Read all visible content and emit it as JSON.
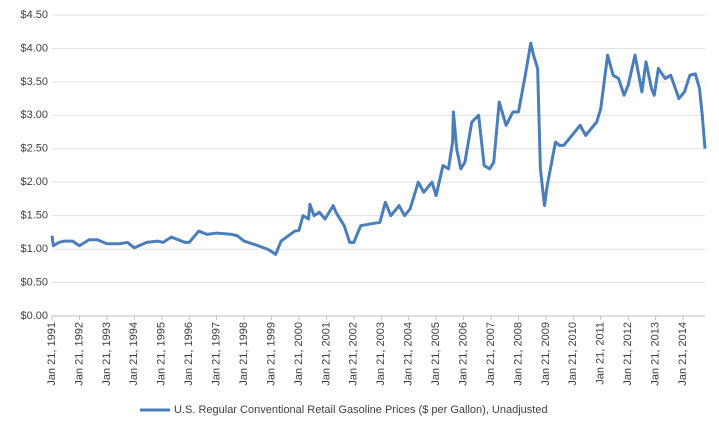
{
  "chart_data": {
    "type": "line",
    "x": [
      1991.05,
      1991.1,
      1991.3,
      1991.5,
      1991.8,
      1992.05,
      1992.4,
      1992.7,
      1993.05,
      1993.5,
      1993.8,
      1994.05,
      1994.5,
      1994.9,
      1995.1,
      1995.4,
      1995.9,
      1996.05,
      1996.4,
      1996.7,
      1997.05,
      1997.6,
      1997.8,
      1998.05,
      1998.5,
      1998.9,
      1999.1,
      1999.2,
      1999.4,
      1999.9,
      2000.05,
      2000.2,
      2000.4,
      2000.45,
      2000.6,
      2000.8,
      2001.0,
      2001.3,
      2001.4,
      2001.7,
      2001.9,
      2002.05,
      2002.3,
      2002.7,
      2003.0,
      2003.2,
      2003.4,
      2003.7,
      2003.9,
      2004.1,
      2004.4,
      2004.6,
      2004.9,
      2005.05,
      2005.3,
      2005.5,
      2005.65,
      2005.68,
      2005.8,
      2005.95,
      2006.1,
      2006.35,
      2006.6,
      2006.8,
      2007.0,
      2007.15,
      2007.35,
      2007.6,
      2007.85,
      2008.05,
      2008.3,
      2008.5,
      2008.6,
      2008.75,
      2008.85,
      2009.0,
      2009.1,
      2009.4,
      2009.55,
      2009.7,
      2010.0,
      2010.3,
      2010.5,
      2010.9,
      2011.05,
      2011.3,
      2011.5,
      2011.7,
      2011.9,
      2012.05,
      2012.3,
      2012.55,
      2012.7,
      2012.9,
      2013.0,
      2013.15,
      2013.4,
      2013.6,
      2013.9,
      2014.1,
      2014.3,
      2014.5,
      2014.65,
      2014.75,
      2014.85
    ],
    "series": [
      {
        "name": "U.S. Regular Conventional Retail Gasoline Prices ($ per Gallon), Unadjusted",
        "color": "#4a7ebb",
        "values": [
          1.2,
          1.05,
          1.1,
          1.12,
          1.12,
          1.05,
          1.14,
          1.14,
          1.08,
          1.08,
          1.1,
          1.02,
          1.1,
          1.12,
          1.1,
          1.18,
          1.1,
          1.1,
          1.27,
          1.22,
          1.24,
          1.22,
          1.2,
          1.12,
          1.06,
          1.0,
          0.95,
          0.92,
          1.12,
          1.27,
          1.28,
          1.5,
          1.45,
          1.67,
          1.5,
          1.55,
          1.45,
          1.65,
          1.55,
          1.35,
          1.1,
          1.1,
          1.35,
          1.38,
          1.4,
          1.7,
          1.5,
          1.65,
          1.5,
          1.6,
          2.0,
          1.85,
          2.0,
          1.8,
          2.25,
          2.2,
          2.6,
          3.05,
          2.5,
          2.2,
          2.3,
          2.9,
          3.0,
          2.25,
          2.2,
          2.3,
          3.2,
          2.85,
          3.05,
          3.05,
          3.6,
          4.08,
          3.9,
          3.7,
          2.2,
          1.65,
          1.95,
          2.6,
          2.55,
          2.55,
          2.7,
          2.85,
          2.7,
          2.9,
          3.1,
          3.9,
          3.6,
          3.55,
          3.3,
          3.45,
          3.9,
          3.35,
          3.8,
          3.4,
          3.3,
          3.7,
          3.55,
          3.6,
          3.25,
          3.35,
          3.6,
          3.62,
          3.4,
          3.0,
          2.5
        ]
      }
    ],
    "xlim": [
      1991.05,
      2014.85
    ],
    "xticks": [
      {
        "value": 1991.05,
        "label": "Jan 21, 1991"
      },
      {
        "value": 1992.05,
        "label": "Jan 21, 1992"
      },
      {
        "value": 1993.05,
        "label": "Jan 21, 1993"
      },
      {
        "value": 1994.05,
        "label": "Jan 21, 1994"
      },
      {
        "value": 1995.05,
        "label": "Jan 21, 1995"
      },
      {
        "value": 1996.05,
        "label": "Jan 21, 1996"
      },
      {
        "value": 1997.05,
        "label": "Jan 21, 1997"
      },
      {
        "value": 1998.05,
        "label": "Jan 21, 1998"
      },
      {
        "value": 1999.05,
        "label": "Jan 21, 1999"
      },
      {
        "value": 2000.05,
        "label": "Jan 21, 2000"
      },
      {
        "value": 2001.05,
        "label": "Jan 21, 2001"
      },
      {
        "value": 2002.05,
        "label": "Jan 21, 2002"
      },
      {
        "value": 2003.05,
        "label": "Jan 21, 2003"
      },
      {
        "value": 2004.05,
        "label": "Jan 21, 2004"
      },
      {
        "value": 2005.05,
        "label": "Jan 21, 2005"
      },
      {
        "value": 2006.05,
        "label": "Jan 21, 2006"
      },
      {
        "value": 2007.05,
        "label": "Jan 21, 2007"
      },
      {
        "value": 2008.05,
        "label": "Jan 21, 2008"
      },
      {
        "value": 2009.05,
        "label": "Jan 21, 2009"
      },
      {
        "value": 2010.05,
        "label": "Jan 21, 2010"
      },
      {
        "value": 2011.05,
        "label": "Jan 21, 2011"
      },
      {
        "value": 2012.05,
        "label": "Jan 21, 2012"
      },
      {
        "value": 2013.05,
        "label": "Jan 21, 2013"
      },
      {
        "value": 2014.05,
        "label": "Jan 21, 2014"
      }
    ],
    "ylim": [
      0,
      4.5
    ],
    "yticks": [
      {
        "value": 0,
        "label": "$0.00"
      },
      {
        "value": 0.5,
        "label": "$0.50"
      },
      {
        "value": 1,
        "label": "$1.00"
      },
      {
        "value": 1.5,
        "label": "$1.50"
      },
      {
        "value": 2,
        "label": "$2.00"
      },
      {
        "value": 2.5,
        "label": "$2.50"
      },
      {
        "value": 3,
        "label": "$3.00"
      },
      {
        "value": 3.5,
        "label": "$3.50"
      },
      {
        "value": 4,
        "label": "$4.00"
      },
      {
        "value": 4.5,
        "label": "$4.50"
      }
    ],
    "grid": true,
    "legend": "bottom"
  }
}
